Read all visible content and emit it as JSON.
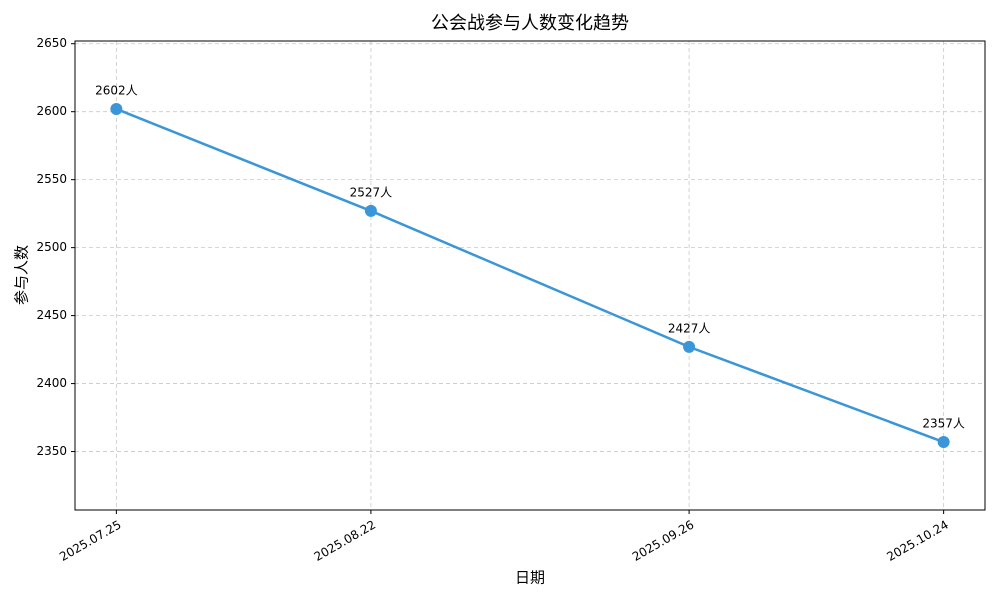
{
  "chart_data": {
    "type": "line",
    "title": "公会战参与人数变化趋势",
    "xlabel": "日期",
    "ylabel": "参与人数",
    "x": [
      "2025.07.25",
      "2025.08.22",
      "2025.09.26",
      "2025.10.24"
    ],
    "series": [
      {
        "name": "参与人数",
        "color": "#3a96d8",
        "values": [
          2602,
          2527,
          2427,
          2357
        ],
        "value_labels": [
          "2602人",
          "2527人",
          "2427人",
          "2357人"
        ]
      }
    ],
    "ylim": [
      2307,
      2652
    ],
    "yticks": [
      2350,
      2400,
      2450,
      2500,
      2550,
      2600,
      2650
    ],
    "grid": true
  }
}
